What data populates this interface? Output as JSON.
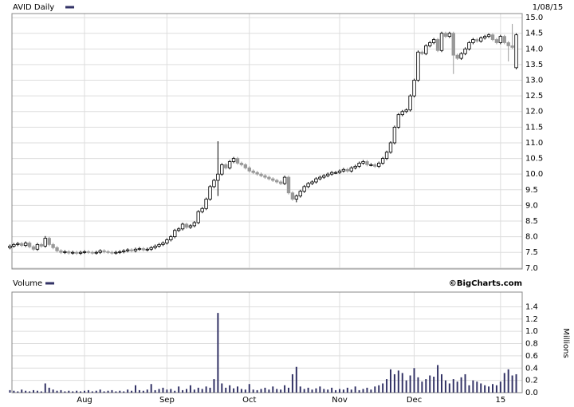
{
  "chart_data": [
    {
      "type": "candlestick",
      "title": "AVID Daily",
      "date": "1/08/15",
      "up_color": "#ffffff",
      "down_color": "#999999",
      "legend_color": "#333366",
      "grid": true,
      "ylim": [
        6.97,
        15.13
      ],
      "yticks": [
        {
          "value": 7,
          "label": "7.0"
        },
        {
          "value": 7.5,
          "label": "7.5"
        },
        {
          "value": 8,
          "label": "8.0"
        },
        {
          "value": 8.5,
          "label": "8.5"
        },
        {
          "value": 9,
          "label": "9.0"
        },
        {
          "value": 9.5,
          "label": "9.5"
        },
        {
          "value": 10,
          "label": "10.0"
        },
        {
          "value": 10.5,
          "label": "10.5"
        },
        {
          "value": 11,
          "label": "11.0"
        },
        {
          "value": 11.5,
          "label": "11.5"
        },
        {
          "value": 12,
          "label": "12.0"
        },
        {
          "value": 12.5,
          "label": "12.5"
        },
        {
          "value": 13,
          "label": "13.0"
        },
        {
          "value": 13.5,
          "label": "13.5"
        },
        {
          "value": 14,
          "label": "14.0"
        },
        {
          "value": 14.5,
          "label": "14.5"
        },
        {
          "value": 15,
          "label": "15.0"
        }
      ],
      "open": [
        7.65,
        7.7,
        7.75,
        7.78,
        7.72,
        7.8,
        7.68,
        7.6,
        7.75,
        7.7,
        7.95,
        7.75,
        7.65,
        7.55,
        7.5,
        7.52,
        7.48,
        7.5,
        7.47,
        7.5,
        7.52,
        7.5,
        7.48,
        7.5,
        7.55,
        7.52,
        7.5,
        7.48,
        7.5,
        7.52,
        7.55,
        7.58,
        7.55,
        7.6,
        7.62,
        7.58,
        7.6,
        7.65,
        7.7,
        7.75,
        7.8,
        7.9,
        8.0,
        8.2,
        8.25,
        8.4,
        8.3,
        8.35,
        8.45,
        8.8,
        8.9,
        9.2,
        9.6,
        9.8,
        10.0,
        10.3,
        10.2,
        10.4,
        10.5,
        10.35,
        10.3,
        10.2,
        10.1,
        10.05,
        10.0,
        9.95,
        9.9,
        9.85,
        9.8,
        9.75,
        9.7,
        9.9,
        9.4,
        9.2,
        9.3,
        9.45,
        9.6,
        9.7,
        9.75,
        9.85,
        9.9,
        9.95,
        10.0,
        10.05,
        10.05,
        10.1,
        10.15,
        10.1,
        10.2,
        10.25,
        10.35,
        10.4,
        10.3,
        10.3,
        10.25,
        10.35,
        10.5,
        10.7,
        11.0,
        11.5,
        11.9,
        12.0,
        12.05,
        12.5,
        13.0,
        13.9,
        13.85,
        14.1,
        14.2,
        14.3,
        13.95,
        14.5,
        14.4,
        14.5,
        13.8,
        13.7,
        13.85,
        14.0,
        14.2,
        14.3,
        14.25,
        14.35,
        14.4,
        14.45,
        14.3,
        14.2,
        14.4,
        14.2,
        14.1,
        13.4
      ],
      "high": [
        7.75,
        7.8,
        7.83,
        7.83,
        7.85,
        7.85,
        7.73,
        7.8,
        7.8,
        8.02,
        8.0,
        7.8,
        7.7,
        7.6,
        7.57,
        7.57,
        7.55,
        7.55,
        7.55,
        7.57,
        7.57,
        7.55,
        7.55,
        7.6,
        7.6,
        7.57,
        7.55,
        7.55,
        7.57,
        7.6,
        7.63,
        7.63,
        7.65,
        7.67,
        7.67,
        7.65,
        7.7,
        7.75,
        7.8,
        7.85,
        7.95,
        8.05,
        8.25,
        8.3,
        8.45,
        8.45,
        8.4,
        8.5,
        8.85,
        8.95,
        9.25,
        9.65,
        9.85,
        11.05,
        10.35,
        10.35,
        10.45,
        10.55,
        10.55,
        10.4,
        10.35,
        10.25,
        10.15,
        10.1,
        10.05,
        10.0,
        9.95,
        9.9,
        9.85,
        9.8,
        9.95,
        9.95,
        9.45,
        9.35,
        9.5,
        9.65,
        9.75,
        9.8,
        9.9,
        9.95,
        10.0,
        10.05,
        10.1,
        10.1,
        10.15,
        10.2,
        10.2,
        10.25,
        10.3,
        10.4,
        10.45,
        10.45,
        10.35,
        10.35,
        10.4,
        10.55,
        10.75,
        11.05,
        11.55,
        11.95,
        12.05,
        12.1,
        12.55,
        13.05,
        13.95,
        13.95,
        14.15,
        14.25,
        14.35,
        14.35,
        14.55,
        14.55,
        14.55,
        14.55,
        13.85,
        13.9,
        14.05,
        14.25,
        14.35,
        14.35,
        14.4,
        14.45,
        14.5,
        14.5,
        14.35,
        14.45,
        14.45,
        14.25,
        14.8,
        14.5
      ],
      "low": [
        7.6,
        7.65,
        7.7,
        7.67,
        7.67,
        7.63,
        7.55,
        7.55,
        7.65,
        7.65,
        7.7,
        7.6,
        7.5,
        7.45,
        7.45,
        7.43,
        7.43,
        7.42,
        7.42,
        7.45,
        7.45,
        7.43,
        7.43,
        7.45,
        7.47,
        7.45,
        7.43,
        7.43,
        7.45,
        7.47,
        7.5,
        7.5,
        7.5,
        7.55,
        7.53,
        7.53,
        7.55,
        7.6,
        7.65,
        7.7,
        7.75,
        7.85,
        7.95,
        8.15,
        8.2,
        8.25,
        8.25,
        8.3,
        8.4,
        8.75,
        8.85,
        9.15,
        9.55,
        9.3,
        9.95,
        10.15,
        10.15,
        10.35,
        10.3,
        10.25,
        10.15,
        10.05,
        10.0,
        9.95,
        9.9,
        9.85,
        9.8,
        9.75,
        9.7,
        9.65,
        9.65,
        9.35,
        9.15,
        9.1,
        9.25,
        9.4,
        9.55,
        9.65,
        9.7,
        9.8,
        9.85,
        9.9,
        9.95,
        10.0,
        10.0,
        10.05,
        10.05,
        10.05,
        10.15,
        10.2,
        10.3,
        10.25,
        10.25,
        10.2,
        10.2,
        10.3,
        10.45,
        10.65,
        10.95,
        11.45,
        11.85,
        11.95,
        12.0,
        12.45,
        12.95,
        13.8,
        13.8,
        14.05,
        14.15,
        13.9,
        13.9,
        14.35,
        14.35,
        13.2,
        13.65,
        13.65,
        13.8,
        13.95,
        14.15,
        14.2,
        14.2,
        14.3,
        14.35,
        14.25,
        14.15,
        14.15,
        14.15,
        13.6,
        14.0,
        13.35
      ],
      "close": [
        7.7,
        7.75,
        7.78,
        7.72,
        7.8,
        7.68,
        7.6,
        7.75,
        7.7,
        7.95,
        7.75,
        7.65,
        7.55,
        7.5,
        7.52,
        7.48,
        7.5,
        7.47,
        7.5,
        7.52,
        7.5,
        7.48,
        7.5,
        7.55,
        7.52,
        7.5,
        7.48,
        7.5,
        7.52,
        7.55,
        7.58,
        7.55,
        7.6,
        7.62,
        7.58,
        7.6,
        7.65,
        7.7,
        7.75,
        7.8,
        7.9,
        8.0,
        8.2,
        8.25,
        8.4,
        8.3,
        8.35,
        8.45,
        8.8,
        8.9,
        9.2,
        9.6,
        9.8,
        10.0,
        10.3,
        10.2,
        10.4,
        10.5,
        10.35,
        10.3,
        10.2,
        10.1,
        10.05,
        10.0,
        9.95,
        9.9,
        9.85,
        9.8,
        9.75,
        9.7,
        9.9,
        9.4,
        9.2,
        9.3,
        9.45,
        9.6,
        9.7,
        9.75,
        9.85,
        9.9,
        9.95,
        10.0,
        10.05,
        10.05,
        10.1,
        10.15,
        10.1,
        10.2,
        10.25,
        10.35,
        10.4,
        10.3,
        10.3,
        10.25,
        10.35,
        10.5,
        10.7,
        11.0,
        11.5,
        11.9,
        12.0,
        12.05,
        12.5,
        13.0,
        13.9,
        13.85,
        14.1,
        14.2,
        14.3,
        13.95,
        14.5,
        14.4,
        14.5,
        13.8,
        13.7,
        13.85,
        14.0,
        14.2,
        14.3,
        14.25,
        14.35,
        14.4,
        14.45,
        14.3,
        14.2,
        14.4,
        14.2,
        14.1,
        14.05,
        14.45
      ]
    },
    {
      "type": "bar",
      "title": "Volume",
      "source": "©BigCharts.com",
      "ylabel": "Millions",
      "color": "#333366",
      "grid": true,
      "ylim": [
        0,
        1.64
      ],
      "yticks": [
        {
          "value": 0,
          "label": "0.0"
        },
        {
          "value": 0.2,
          "label": "0.2"
        },
        {
          "value": 0.4,
          "label": "0.4"
        },
        {
          "value": 0.6,
          "label": "0.6"
        },
        {
          "value": 0.8,
          "label": "0.8"
        },
        {
          "value": 1,
          "label": "1.0"
        },
        {
          "value": 1.2,
          "label": "1.2"
        },
        {
          "value": 1.4,
          "label": "1.4"
        }
      ],
      "categories": [
        null,
        null,
        null,
        null,
        null,
        null,
        null,
        null,
        null,
        null,
        null,
        null,
        null,
        null,
        null,
        null,
        null,
        null,
        null,
        "Aug",
        null,
        null,
        null,
        null,
        null,
        null,
        null,
        null,
        null,
        null,
        null,
        null,
        null,
        null,
        null,
        null,
        null,
        null,
        null,
        null,
        "Sep",
        null,
        null,
        null,
        null,
        null,
        null,
        null,
        null,
        null,
        null,
        null,
        null,
        null,
        null,
        null,
        null,
        null,
        null,
        null,
        null,
        "Oct",
        null,
        null,
        null,
        null,
        null,
        null,
        null,
        null,
        null,
        null,
        null,
        null,
        null,
        null,
        null,
        null,
        null,
        null,
        null,
        null,
        null,
        null,
        "Nov",
        null,
        null,
        null,
        null,
        null,
        null,
        null,
        null,
        null,
        null,
        null,
        null,
        null,
        null,
        null,
        null,
        null,
        null,
        "Dec",
        null,
        null,
        null,
        null,
        null,
        null,
        null,
        null,
        null,
        null,
        null,
        null,
        null,
        null,
        null,
        null,
        null,
        null,
        null,
        null,
        null,
        "15",
        null,
        null,
        null,
        null
      ],
      "values": [
        0.04,
        0.03,
        0.02,
        0.05,
        0.03,
        0.02,
        0.04,
        0.03,
        0.02,
        0.15,
        0.08,
        0.05,
        0.03,
        0.04,
        0.02,
        0.03,
        0.02,
        0.03,
        0.02,
        0.03,
        0.04,
        0.02,
        0.03,
        0.05,
        0.02,
        0.03,
        0.04,
        0.02,
        0.03,
        0.02,
        0.05,
        0.03,
        0.12,
        0.04,
        0.03,
        0.05,
        0.14,
        0.04,
        0.06,
        0.08,
        0.05,
        0.06,
        0.03,
        0.1,
        0.04,
        0.06,
        0.12,
        0.05,
        0.08,
        0.06,
        0.1,
        0.08,
        0.22,
        1.3,
        0.15,
        0.08,
        0.12,
        0.07,
        0.1,
        0.06,
        0.05,
        0.14,
        0.05,
        0.04,
        0.06,
        0.08,
        0.05,
        0.1,
        0.06,
        0.05,
        0.12,
        0.08,
        0.3,
        0.42,
        0.1,
        0.06,
        0.08,
        0.05,
        0.07,
        0.1,
        0.06,
        0.05,
        0.08,
        0.04,
        0.06,
        0.05,
        0.08,
        0.05,
        0.1,
        0.04,
        0.06,
        0.08,
        0.05,
        0.1,
        0.12,
        0.15,
        0.22,
        0.38,
        0.3,
        0.36,
        0.32,
        0.2,
        0.28,
        0.4,
        0.25,
        0.18,
        0.22,
        0.28,
        0.26,
        0.45,
        0.3,
        0.2,
        0.15,
        0.22,
        0.18,
        0.25,
        0.3,
        0.12,
        0.2,
        0.18,
        0.15,
        0.12,
        0.1,
        0.14,
        0.12,
        0.18,
        0.32,
        0.38,
        0.28,
        0.3
      ]
    }
  ]
}
